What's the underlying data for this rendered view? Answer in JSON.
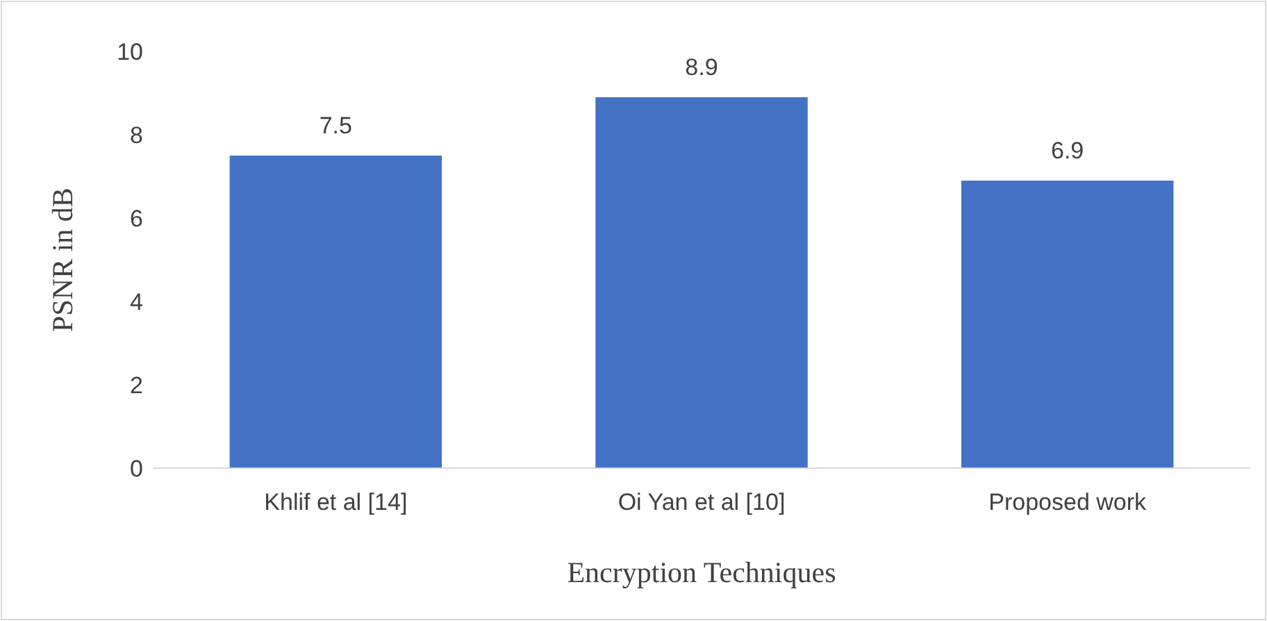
{
  "chart_data": {
    "type": "bar",
    "xlabel": "Encryption Techniques",
    "ylabel": "PSNR in dB",
    "categories": [
      "Khlif et al [14]",
      "Oi Yan et al [10]",
      "Proposed work"
    ],
    "values": [
      7.5,
      8.9,
      6.9
    ],
    "color": "#4472c4",
    "data_labels": true,
    "ylim": [
      0,
      10
    ],
    "yticks": [
      0,
      2,
      4,
      6,
      8,
      10
    ],
    "grid": false
  }
}
